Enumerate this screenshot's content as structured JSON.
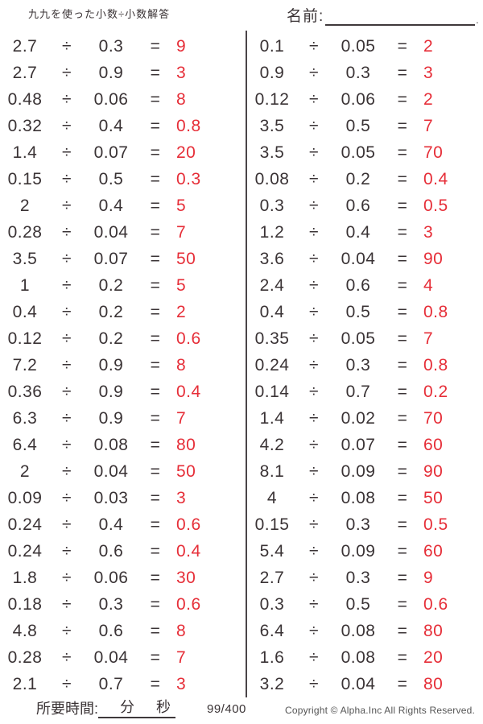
{
  "title": "九九を使った小数÷小数解答",
  "name_label": "名前:",
  "name_line_end": ".",
  "operators": {
    "divide": "÷",
    "equals": "="
  },
  "colors": {
    "answer_red": "#e62e38",
    "text_dark": "#3a3335"
  },
  "problems_left": [
    {
      "dividend": "2.7",
      "divisor": "0.3",
      "answer": "9"
    },
    {
      "dividend": "2.7",
      "divisor": "0.9",
      "answer": "3"
    },
    {
      "dividend": "0.48",
      "divisor": "0.06",
      "answer": "8"
    },
    {
      "dividend": "0.32",
      "divisor": "0.4",
      "answer": "0.8"
    },
    {
      "dividend": "1.4",
      "divisor": "0.07",
      "answer": "20"
    },
    {
      "dividend": "0.15",
      "divisor": "0.5",
      "answer": "0.3"
    },
    {
      "dividend": "2",
      "divisor": "0.4",
      "answer": "5"
    },
    {
      "dividend": "0.28",
      "divisor": "0.04",
      "answer": "7"
    },
    {
      "dividend": "3.5",
      "divisor": "0.07",
      "answer": "50"
    },
    {
      "dividend": "1",
      "divisor": "0.2",
      "answer": "5"
    },
    {
      "dividend": "0.4",
      "divisor": "0.2",
      "answer": "2"
    },
    {
      "dividend": "0.12",
      "divisor": "0.2",
      "answer": "0.6"
    },
    {
      "dividend": "7.2",
      "divisor": "0.9",
      "answer": "8"
    },
    {
      "dividend": "0.36",
      "divisor": "0.9",
      "answer": "0.4"
    },
    {
      "dividend": "6.3",
      "divisor": "0.9",
      "answer": "7"
    },
    {
      "dividend": "6.4",
      "divisor": "0.08",
      "answer": "80"
    },
    {
      "dividend": "2",
      "divisor": "0.04",
      "answer": "50"
    },
    {
      "dividend": "0.09",
      "divisor": "0.03",
      "answer": "3"
    },
    {
      "dividend": "0.24",
      "divisor": "0.4",
      "answer": "0.6"
    },
    {
      "dividend": "0.24",
      "divisor": "0.6",
      "answer": "0.4"
    },
    {
      "dividend": "1.8",
      "divisor": "0.06",
      "answer": "30"
    },
    {
      "dividend": "0.18",
      "divisor": "0.3",
      "answer": "0.6"
    },
    {
      "dividend": "4.8",
      "divisor": "0.6",
      "answer": "8"
    },
    {
      "dividend": "0.28",
      "divisor": "0.04",
      "answer": "7"
    },
    {
      "dividend": "2.1",
      "divisor": "0.7",
      "answer": "3"
    }
  ],
  "problems_right": [
    {
      "dividend": "0.1",
      "divisor": "0.05",
      "answer": "2"
    },
    {
      "dividend": "0.9",
      "divisor": "0.3",
      "answer": "3"
    },
    {
      "dividend": "0.12",
      "divisor": "0.06",
      "answer": "2"
    },
    {
      "dividend": "3.5",
      "divisor": "0.5",
      "answer": "7"
    },
    {
      "dividend": "3.5",
      "divisor": "0.05",
      "answer": "70"
    },
    {
      "dividend": "0.08",
      "divisor": "0.2",
      "answer": "0.4"
    },
    {
      "dividend": "0.3",
      "divisor": "0.6",
      "answer": "0.5"
    },
    {
      "dividend": "1.2",
      "divisor": "0.4",
      "answer": "3"
    },
    {
      "dividend": "3.6",
      "divisor": "0.04",
      "answer": "90"
    },
    {
      "dividend": "2.4",
      "divisor": "0.6",
      "answer": "4"
    },
    {
      "dividend": "0.4",
      "divisor": "0.5",
      "answer": "0.8"
    },
    {
      "dividend": "0.35",
      "divisor": "0.05",
      "answer": "7"
    },
    {
      "dividend": "0.24",
      "divisor": "0.3",
      "answer": "0.8"
    },
    {
      "dividend": "0.14",
      "divisor": "0.7",
      "answer": "0.2"
    },
    {
      "dividend": "1.4",
      "divisor": "0.02",
      "answer": "70"
    },
    {
      "dividend": "4.2",
      "divisor": "0.07",
      "answer": "60"
    },
    {
      "dividend": "8.1",
      "divisor": "0.09",
      "answer": "90"
    },
    {
      "dividend": "4",
      "divisor": "0.08",
      "answer": "50"
    },
    {
      "dividend": "0.15",
      "divisor": "0.3",
      "answer": "0.5"
    },
    {
      "dividend": "5.4",
      "divisor": "0.09",
      "answer": "60"
    },
    {
      "dividend": "2.7",
      "divisor": "0.3",
      "answer": "9"
    },
    {
      "dividend": "0.3",
      "divisor": "0.5",
      "answer": "0.6"
    },
    {
      "dividend": "6.4",
      "divisor": "0.08",
      "answer": "80"
    },
    {
      "dividend": "1.6",
      "divisor": "0.08",
      "answer": "20"
    },
    {
      "dividend": "3.2",
      "divisor": "0.04",
      "answer": "80"
    }
  ],
  "footer": {
    "time_label": "所要時間:",
    "minutes_label": "分",
    "seconds_label": "秒",
    "page": "99/400",
    "copyright": "Copyright © Alpha.Inc All Rights Reserved."
  }
}
